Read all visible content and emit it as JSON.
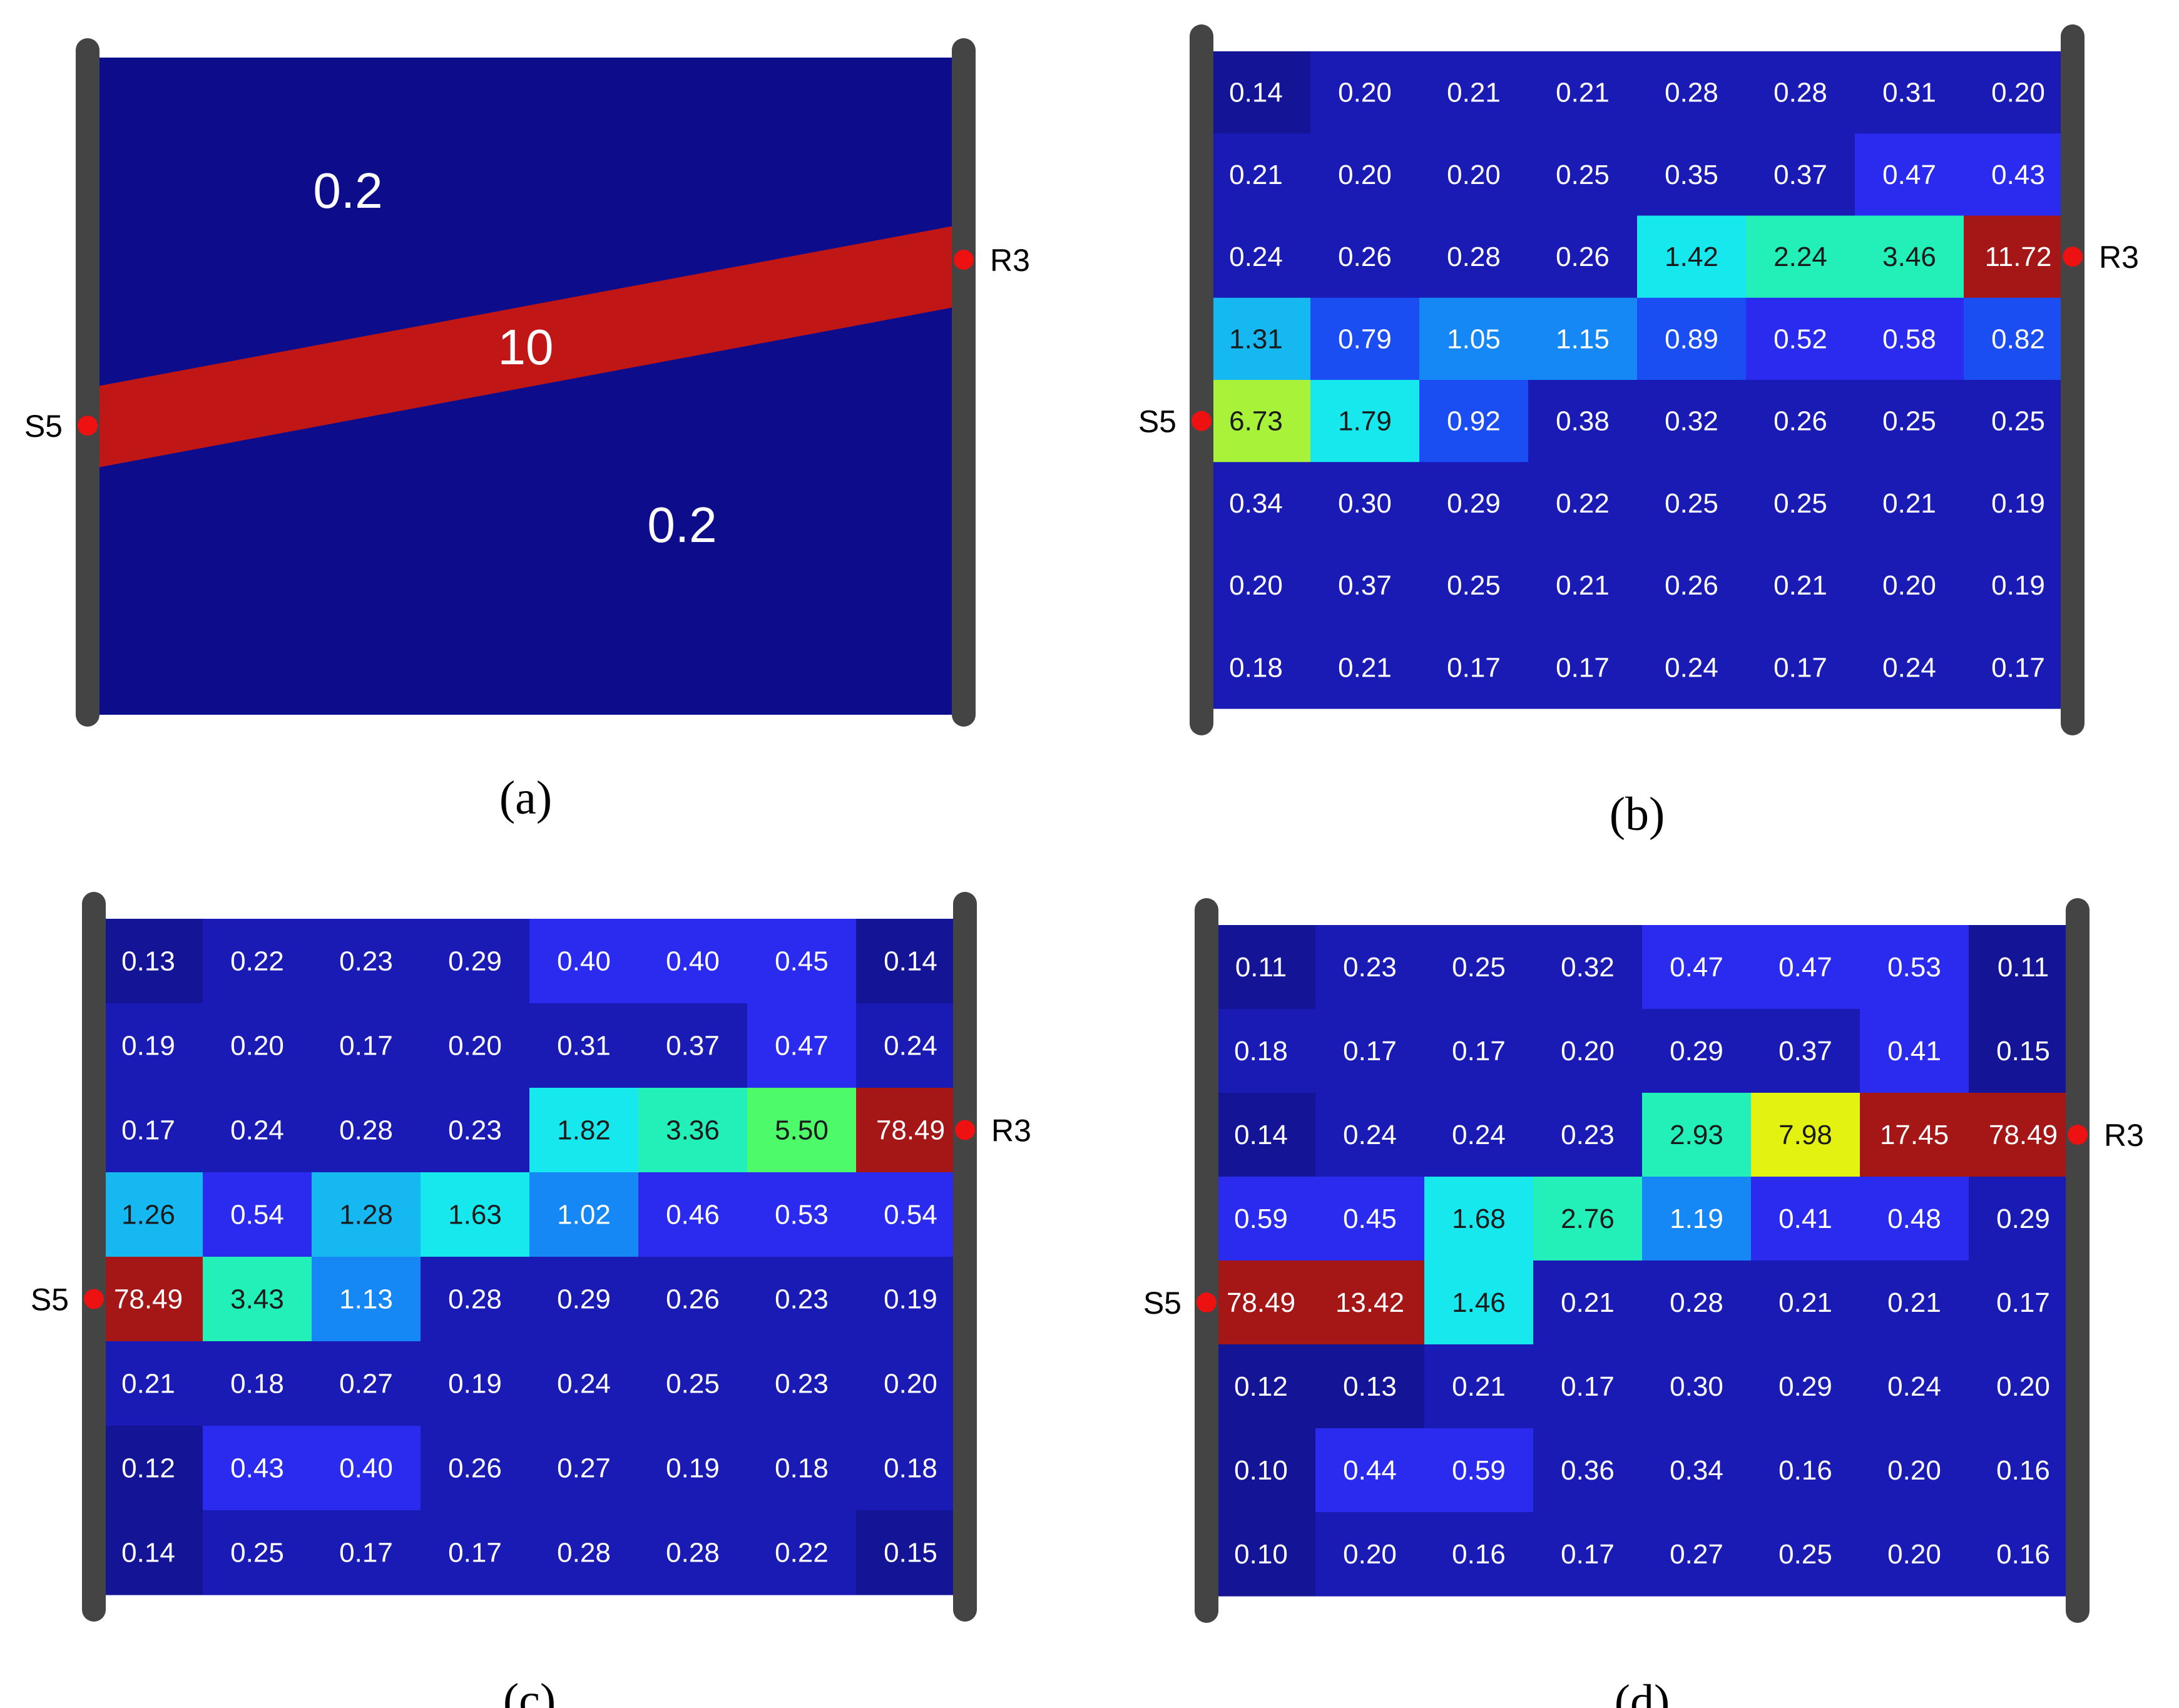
{
  "panels": [
    {
      "id": "a",
      "caption": "(a)",
      "type": "model",
      "source_label": "S5",
      "receiver_label": "R3",
      "zones": [
        {
          "label": "0.2",
          "value": 0.2
        },
        {
          "label": "10",
          "value": 10
        },
        {
          "label": "0.2",
          "value": 0.2
        }
      ],
      "colors": {
        "background": "#0d0d8c",
        "anomaly": "#c01616"
      }
    },
    {
      "id": "b",
      "caption": "(b)",
      "type": "grid",
      "source_label": "S5",
      "receiver_label": "R3",
      "values": [
        [
          "0.14",
          "0.20",
          "0.21",
          "0.21",
          "0.28",
          "0.28",
          "0.31",
          "0.20"
        ],
        [
          "0.21",
          "0.20",
          "0.20",
          "0.25",
          "0.35",
          "0.37",
          "0.47",
          "0.43"
        ],
        [
          "0.24",
          "0.26",
          "0.28",
          "0.26",
          "1.42",
          "2.24",
          "3.46",
          "11.72"
        ],
        [
          "1.31",
          "0.79",
          "1.05",
          "1.15",
          "0.89",
          "0.52",
          "0.58",
          "0.82"
        ],
        [
          "6.73",
          "1.79",
          "0.92",
          "0.38",
          "0.32",
          "0.26",
          "0.25",
          "0.25"
        ],
        [
          "0.34",
          "0.30",
          "0.29",
          "0.22",
          "0.25",
          "0.25",
          "0.21",
          "0.19"
        ],
        [
          "0.20",
          "0.37",
          "0.25",
          "0.21",
          "0.26",
          "0.21",
          "0.20",
          "0.19"
        ],
        [
          "0.18",
          "0.21",
          "0.17",
          "0.17",
          "0.24",
          "0.17",
          "0.24",
          "0.17"
        ]
      ]
    },
    {
      "id": "c",
      "caption": "(c)",
      "type": "grid",
      "source_label": "S5",
      "receiver_label": "R3",
      "values": [
        [
          "0.13",
          "0.22",
          "0.23",
          "0.29",
          "0.40",
          "0.40",
          "0.45",
          "0.14"
        ],
        [
          "0.19",
          "0.20",
          "0.17",
          "0.20",
          "0.31",
          "0.37",
          "0.47",
          "0.24"
        ],
        [
          "0.17",
          "0.24",
          "0.28",
          "0.23",
          "1.82",
          "3.36",
          "5.50",
          "78.49"
        ],
        [
          "1.26",
          "0.54",
          "1.28",
          "1.63",
          "1.02",
          "0.46",
          "0.53",
          "0.54"
        ],
        [
          "78.49",
          "3.43",
          "1.13",
          "0.28",
          "0.29",
          "0.26",
          "0.23",
          "0.19"
        ],
        [
          "0.21",
          "0.18",
          "0.27",
          "0.19",
          "0.24",
          "0.25",
          "0.23",
          "0.20"
        ],
        [
          "0.12",
          "0.43",
          "0.40",
          "0.26",
          "0.27",
          "0.19",
          "0.18",
          "0.18"
        ],
        [
          "0.14",
          "0.25",
          "0.17",
          "0.17",
          "0.28",
          "0.28",
          "0.22",
          "0.15"
        ]
      ]
    },
    {
      "id": "d",
      "caption": "(d)",
      "type": "grid",
      "source_label": "S5",
      "receiver_label": "R3",
      "values": [
        [
          "0.11",
          "0.23",
          "0.25",
          "0.32",
          "0.47",
          "0.47",
          "0.53",
          "0.11"
        ],
        [
          "0.18",
          "0.17",
          "0.17",
          "0.20",
          "0.29",
          "0.37",
          "0.41",
          "0.15"
        ],
        [
          "0.14",
          "0.24",
          "0.24",
          "0.23",
          "2.93",
          "7.98",
          "17.45",
          "78.49"
        ],
        [
          "0.59",
          "0.45",
          "1.68",
          "2.76",
          "1.19",
          "0.41",
          "0.48",
          "0.29"
        ],
        [
          "78.49",
          "13.42",
          "1.46",
          "0.21",
          "0.28",
          "0.21",
          "0.21",
          "0.17"
        ],
        [
          "0.12",
          "0.13",
          "0.21",
          "0.17",
          "0.30",
          "0.29",
          "0.24",
          "0.20"
        ],
        [
          "0.10",
          "0.44",
          "0.59",
          "0.36",
          "0.34",
          "0.16",
          "0.20",
          "0.16"
        ],
        [
          "0.10",
          "0.20",
          "0.16",
          "0.17",
          "0.27",
          "0.25",
          "0.20",
          "0.16"
        ]
      ]
    }
  ],
  "colors": {
    "borehole": "#444444",
    "marker": "#ee1111",
    "low_dark": "#141496",
    "low": "#1a1ab4",
    "mid_blue": "#2b2bf0",
    "blue": "#1b4ef2",
    "azure": "#1688f6",
    "sky": "#16b8f2",
    "cyan": "#16e8ee",
    "teal": "#22f0b8",
    "green": "#4cfa6a",
    "lime": "#a8f23a",
    "yellow": "#e4f212",
    "red": "#a51616"
  }
}
